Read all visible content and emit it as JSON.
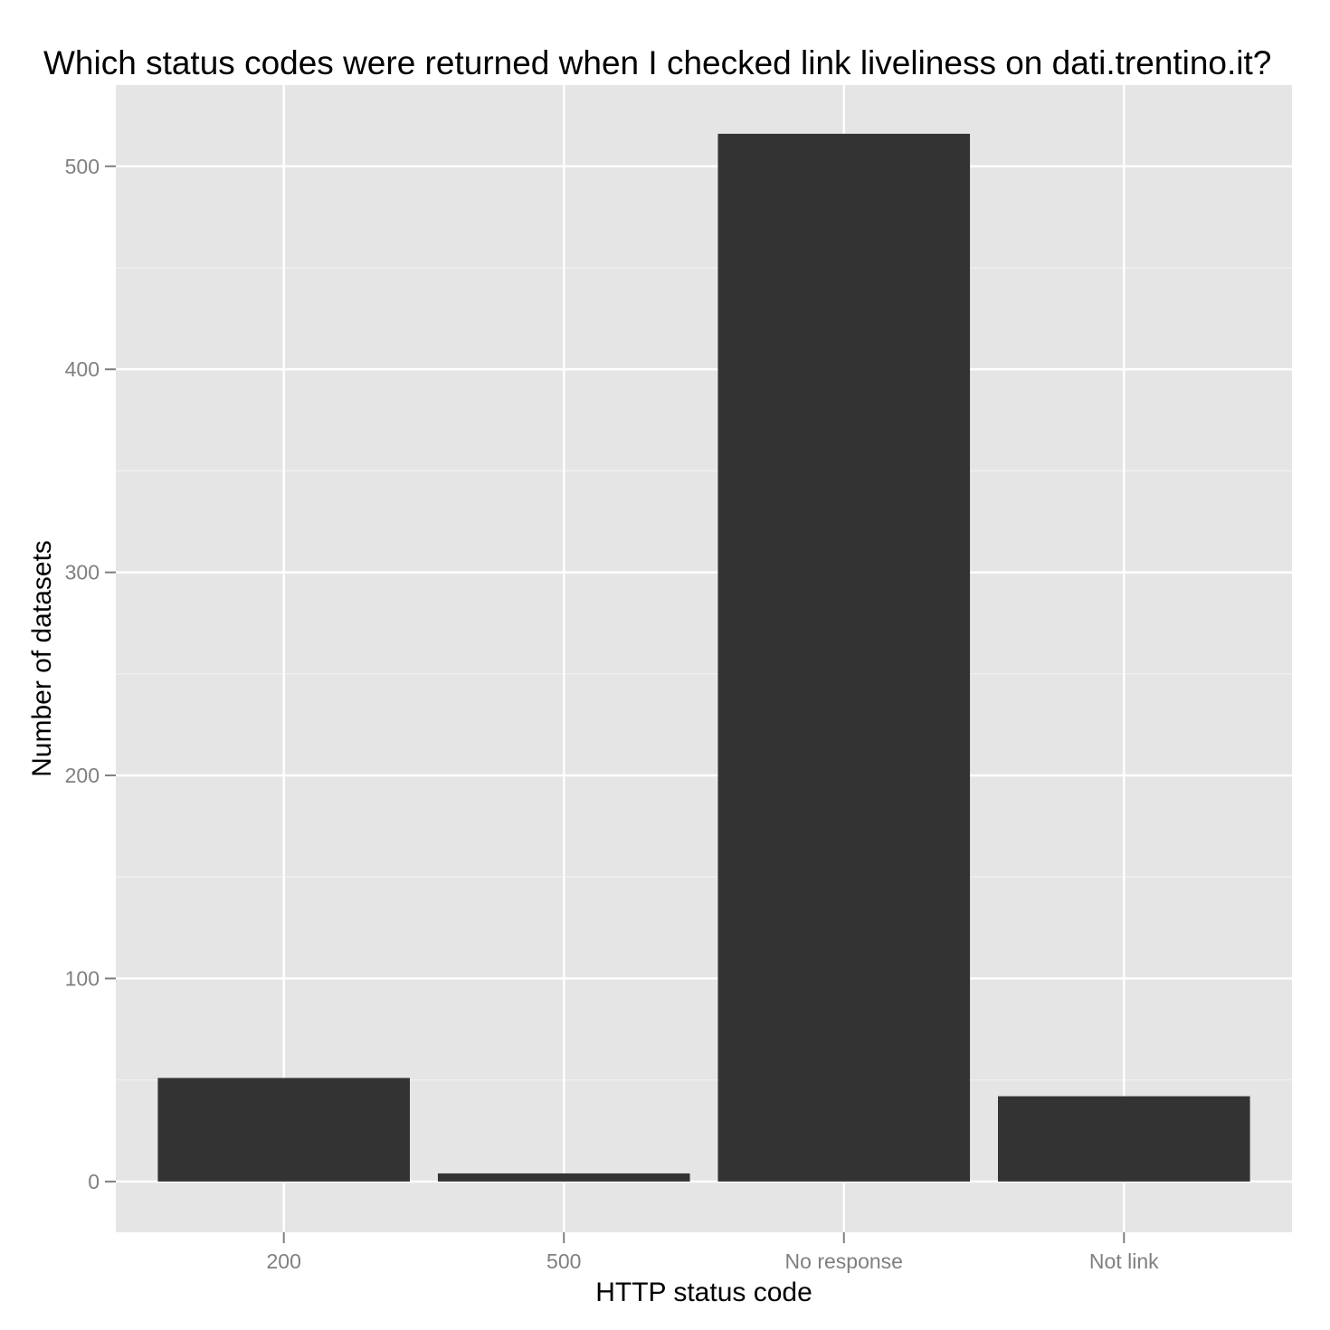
{
  "chart_data": {
    "type": "bar",
    "title": "Which status codes were returned when I checked link liveliness on dati.trentino.it?",
    "xlabel": "HTTP status code",
    "ylabel": "Number of datasets",
    "categories": [
      "200",
      "500",
      "No response",
      "Not link"
    ],
    "values": [
      51,
      4,
      516,
      42
    ],
    "ylim": [
      -25,
      540
    ],
    "yticks": [
      0,
      100,
      200,
      300,
      400,
      500
    ],
    "ytick_labels": [
      "0",
      "100",
      "200",
      "300",
      "400",
      "500"
    ],
    "grid": true,
    "legend": "none",
    "colors": {
      "bar": "#333333",
      "panel": "#e5e5e5",
      "grid_major": "#ffffff",
      "grid_minor": "#f2f2f2",
      "tick_text": "#7f7f7f"
    }
  }
}
